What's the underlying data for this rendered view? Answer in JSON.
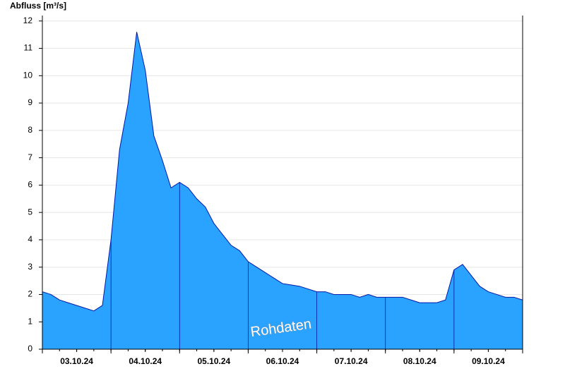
{
  "chart_data": {
    "type": "area",
    "y_label": "Abfluss [m³/s]",
    "annotation": "Rohdaten",
    "color": "#29a3ff",
    "line_color": "#0018a8",
    "grid": true,
    "x": [
      0,
      0.125,
      0.25,
      0.375,
      0.5,
      0.625,
      0.75,
      0.875,
      1,
      1.125,
      1.25,
      1.375,
      1.5,
      1.625,
      1.75,
      1.875,
      2,
      2.125,
      2.25,
      2.375,
      2.5,
      2.625,
      2.75,
      2.875,
      3,
      3.125,
      3.25,
      3.375,
      3.5,
      3.625,
      3.75,
      3.875,
      4,
      4.125,
      4.25,
      4.375,
      4.5,
      4.625,
      4.75,
      4.875,
      5,
      5.125,
      5.25,
      5.375,
      5.5,
      5.625,
      5.75,
      5.875,
      6,
      6.125,
      6.25,
      6.375,
      6.5,
      6.625,
      6.75,
      6.875,
      7
    ],
    "values": [
      2.1,
      2.0,
      1.8,
      1.7,
      1.6,
      1.5,
      1.4,
      1.6,
      4.0,
      7.3,
      9.0,
      11.6,
      10.2,
      7.8,
      6.9,
      5.9,
      6.1,
      5.9,
      5.5,
      5.2,
      4.6,
      4.2,
      3.8,
      3.6,
      3.2,
      3.0,
      2.8,
      2.6,
      2.4,
      2.35,
      2.3,
      2.2,
      2.1,
      2.1,
      2.0,
      2.0,
      2.0,
      1.9,
      2.0,
      1.9,
      1.9,
      1.9,
      1.9,
      1.8,
      1.7,
      1.7,
      1.7,
      1.8,
      2.9,
      3.1,
      2.7,
      2.3,
      2.1,
      2.0,
      1.9,
      1.9,
      1.8
    ],
    "xlim": [
      0,
      7
    ],
    "xticks": [
      {
        "value": 0.5,
        "label": "03.10.24"
      },
      {
        "value": 1.5,
        "label": "04.10.24"
      },
      {
        "value": 2.5,
        "label": "05.10.24"
      },
      {
        "value": 3.5,
        "label": "06.10.24"
      },
      {
        "value": 4.5,
        "label": "07.10.24"
      },
      {
        "value": 5.5,
        "label": "08.10.24"
      },
      {
        "value": 6.5,
        "label": "09.10.24"
      }
    ],
    "ylim": [
      0,
      12.2
    ],
    "yticks": [
      0,
      1,
      2,
      3,
      4,
      5,
      6,
      7,
      8,
      9,
      10,
      11,
      12
    ]
  }
}
